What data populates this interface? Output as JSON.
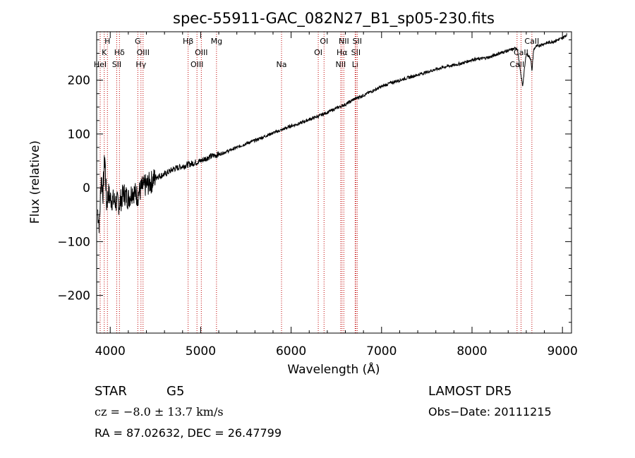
{
  "chart_data": {
    "type": "line",
    "title": "spec-55911-GAC_082N27_B1_sp05-230.fits",
    "xlabel": "Wavelength (Å)",
    "ylabel": "Flux (relative)",
    "xlim": [
      3850,
      9100
    ],
    "ylim": [
      -270,
      290
    ],
    "x_ticks": [
      4000,
      5000,
      6000,
      7000,
      8000,
      9000
    ],
    "y_ticks": [
      -200,
      -100,
      0,
      100,
      200
    ],
    "grid": false,
    "series": [
      {
        "color": "#000000",
        "x": [
          3860,
          3880,
          3900,
          3920,
          3940,
          3960,
          3980,
          4000,
          4050,
          4100,
          4150,
          4200,
          4250,
          4300,
          4350,
          4400,
          4450,
          4500,
          4600,
          4700,
          4800,
          4900,
          5000,
          5100,
          5200,
          5300,
          5400,
          5500,
          5600,
          5700,
          5800,
          5900,
          6000,
          6100,
          6200,
          6300,
          6400,
          6500,
          6600,
          6700,
          6800,
          6900,
          7000,
          7100,
          7200,
          7300,
          7400,
          7500,
          7600,
          7700,
          7800,
          7900,
          8000,
          8100,
          8200,
          8300,
          8400,
          8500,
          8540,
          8560,
          8600,
          8650,
          8662,
          8680,
          8700,
          8800,
          8900,
          9000,
          9050
        ],
        "y": [
          -40,
          -70,
          20,
          -10,
          60,
          -30,
          -10,
          -20,
          -25,
          -30,
          -10,
          -20,
          -5,
          -15,
          0,
          5,
          10,
          20,
          25,
          35,
          40,
          45,
          50,
          58,
          62,
          68,
          75,
          82,
          88,
          95,
          102,
          108,
          115,
          120,
          127,
          133,
          140,
          148,
          155,
          165,
          172,
          180,
          188,
          195,
          200,
          205,
          210,
          215,
          220,
          225,
          228,
          232,
          238,
          240,
          243,
          250,
          255,
          260,
          210,
          190,
          250,
          240,
          215,
          255,
          262,
          268,
          272,
          278,
          285
        ]
      }
    ],
    "lines": [
      {
        "x": 3889,
        "label": "HeI",
        "row": 3
      },
      {
        "x": 3934,
        "label": "K",
        "row": 2
      },
      {
        "x": 3969,
        "label": "H",
        "row": 1
      },
      {
        "x": 4072,
        "label": "SII",
        "row": 3
      },
      {
        "x": 4102,
        "label": "Hδ",
        "row": 2
      },
      {
        "x": 4305,
        "label": "G",
        "row": 1
      },
      {
        "x": 4340,
        "label": "Hγ",
        "row": 3
      },
      {
        "x": 4363,
        "label": "OIII",
        "row": 2
      },
      {
        "x": 4861,
        "label": "Hβ",
        "row": 1
      },
      {
        "x": 4959,
        "label": "OIII",
        "row": 3
      },
      {
        "x": 5007,
        "label": "OIII",
        "row": 2
      },
      {
        "x": 5175,
        "label": "Mg",
        "row": 1
      },
      {
        "x": 5894,
        "label": "Na",
        "row": 3
      },
      {
        "x": 6300,
        "label": "OI",
        "row": 2
      },
      {
        "x": 6364,
        "label": "OI",
        "row": 1
      },
      {
        "x": 6548,
        "label": "NII",
        "row": 3
      },
      {
        "x": 6563,
        "label": "Hα",
        "row": 2
      },
      {
        "x": 6583,
        "label": "NII",
        "row": 1
      },
      {
        "x": 6716,
        "label": "SII",
        "row": 2
      },
      {
        "x": 6708,
        "label": "Li",
        "row": 3
      },
      {
        "x": 6731,
        "label": "SII",
        "row": 1
      },
      {
        "x": 8498,
        "label": "CaII",
        "row": 3
      },
      {
        "x": 8542,
        "label": "CaII",
        "row": 2
      },
      {
        "x": 8662,
        "label": "CaII",
        "row": 1
      }
    ]
  },
  "info": {
    "class_label": "STAR",
    "subclass": "G5",
    "cz": "cz = −8.0 ± 13.7 km/s",
    "radec": "RA =  87.02632, DEC =  26.47799",
    "survey": "LAMOST DR5",
    "obsdate": "Obs−Date: 20111215"
  }
}
